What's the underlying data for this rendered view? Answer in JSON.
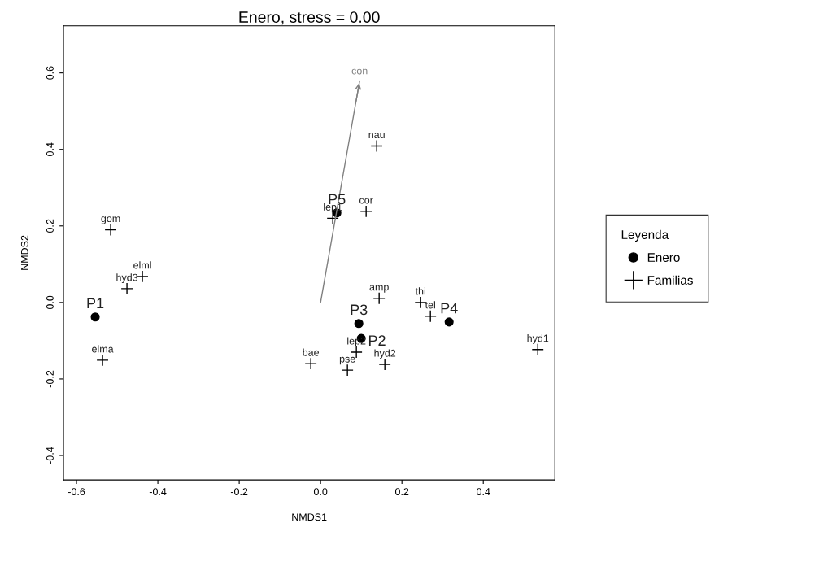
{
  "chart_data": {
    "type": "scatter",
    "title": "Enero, stress = 0.00",
    "xlabel": "NMDS1",
    "ylabel": "NMDS2",
    "xlim": [
      -0.632,
      0.576
    ],
    "ylim": [
      -0.464,
      0.723
    ],
    "xticks": [
      {
        "value": -0.6,
        "label": "-0.6"
      },
      {
        "value": -0.4,
        "label": "-0.4"
      },
      {
        "value": -0.2,
        "label": "-0.2"
      },
      {
        "value": 0.0,
        "label": "0.0"
      },
      {
        "value": 0.2,
        "label": "0.2"
      },
      {
        "value": 0.4,
        "label": "0.4"
      }
    ],
    "yticks": [
      {
        "value": -0.4,
        "label": "-0.4"
      },
      {
        "value": -0.2,
        "label": "-0.2"
      },
      {
        "value": 0.0,
        "label": "0.0"
      },
      {
        "value": 0.2,
        "label": "0.2"
      },
      {
        "value": 0.4,
        "label": "0.4"
      },
      {
        "value": 0.6,
        "label": "0.6"
      }
    ],
    "grid": false,
    "legend": "right",
    "legend_title": "Leyenda",
    "series": [
      {
        "name": "Enero",
        "marker": "circle",
        "color": "#000000",
        "x": [
          -0.554,
          0.04,
          0.094,
          0.1,
          0.316
        ],
        "values": [
          -0.038,
          0.234,
          -0.055,
          -0.094,
          -0.051
        ]
      },
      {
        "name": "Familias",
        "marker": "cross",
        "color": "#000000",
        "x": [
          -0.516,
          -0.438,
          -0.476,
          -0.536,
          0.138,
          0.03,
          0.112,
          0.144,
          0.246,
          0.27,
          0.534,
          -0.024,
          0.066,
          0.088,
          0.158
        ],
        "values": [
          0.19,
          0.068,
          0.036,
          -0.151,
          0.409,
          0.22,
          0.238,
          0.011,
          0.0,
          -0.036,
          -0.123,
          -0.16,
          -0.177,
          -0.13,
          -0.162
        ]
      },
      {
        "name": "con",
        "type": "line",
        "marker": "none",
        "color": "#808080",
        "x": [
          0.0,
          0.096
        ],
        "values": [
          0.0,
          0.579
        ]
      }
    ],
    "annotations": [
      {
        "text": "P1",
        "x": -0.554,
        "y": -0.038
      },
      {
        "text": "P5",
        "x": 0.04,
        "y": 0.234
      },
      {
        "text": "P3",
        "x": 0.094,
        "y": -0.055
      },
      {
        "text": "P2",
        "x": 0.1,
        "y": -0.094
      },
      {
        "text": "P4",
        "x": 0.316,
        "y": -0.051
      },
      {
        "text": "gom",
        "x": -0.516,
        "y": 0.19
      },
      {
        "text": "elml",
        "x": -0.438,
        "y": 0.068
      },
      {
        "text": "hyd3",
        "x": -0.476,
        "y": 0.036
      },
      {
        "text": "elma",
        "x": -0.536,
        "y": -0.151
      },
      {
        "text": "nau",
        "x": 0.138,
        "y": 0.409
      },
      {
        "text": "lep1",
        "x": 0.03,
        "y": 0.22
      },
      {
        "text": "cor",
        "x": 0.112,
        "y": 0.238
      },
      {
        "text": "amp",
        "x": 0.144,
        "y": 0.011
      },
      {
        "text": "thi",
        "x": 0.246,
        "y": 0.0
      },
      {
        "text": "tel",
        "x": 0.27,
        "y": -0.036
      },
      {
        "text": "hyd1",
        "x": 0.534,
        "y": -0.123
      },
      {
        "text": "bae",
        "x": -0.024,
        "y": -0.16
      },
      {
        "text": "pse",
        "x": 0.066,
        "y": -0.177
      },
      {
        "text": "lep2",
        "x": 0.088,
        "y": -0.13
      },
      {
        "text": "hyd2",
        "x": 0.158,
        "y": -0.162
      }
    ]
  }
}
